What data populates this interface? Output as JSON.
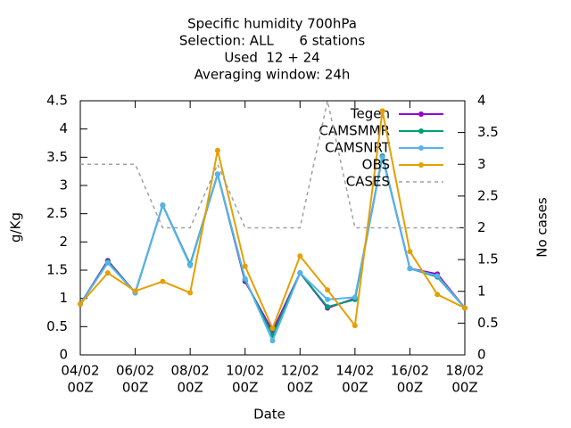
{
  "chart_data": {
    "type": "line",
    "title": [
      "Specific humidity 700hPa",
      "Selection: ALL      6 stations",
      "Used  12 + 24",
      "Averaging window: 24h"
    ],
    "xlabel": "Date",
    "ylabel": "g/Kg",
    "y2label": "No cases",
    "x": [
      4,
      5,
      6,
      7,
      8,
      9,
      10,
      11,
      12,
      13,
      14,
      15,
      16,
      17,
      18
    ],
    "xlim": [
      4,
      18
    ],
    "xticks": [
      {
        "value": 4,
        "label": [
          "04/02",
          "00Z"
        ]
      },
      {
        "value": 6,
        "label": [
          "06/02",
          "00Z"
        ]
      },
      {
        "value": 8,
        "label": [
          "08/02",
          "00Z"
        ]
      },
      {
        "value": 10,
        "label": [
          "10/02",
          "00Z"
        ]
      },
      {
        "value": 12,
        "label": [
          "12/02",
          "00Z"
        ]
      },
      {
        "value": 14,
        "label": [
          "14/02",
          "00Z"
        ]
      },
      {
        "value": 16,
        "label": [
          "16/02",
          "00Z"
        ]
      },
      {
        "value": 18,
        "label": [
          "18/02",
          "00Z"
        ]
      }
    ],
    "ylim": [
      0,
      4.5
    ],
    "yticks": [
      0,
      0.5,
      1,
      1.5,
      2,
      2.5,
      3,
      3.5,
      4,
      4.5
    ],
    "y2lim": [
      0,
      4
    ],
    "y2ticks": [
      0,
      0.5,
      1,
      1.5,
      2,
      2.5,
      3,
      3.5,
      4
    ],
    "legend": "top-right",
    "series": [
      {
        "name": "Tegen",
        "color": "#9400d3",
        "values": [
          0.9,
          1.67,
          1.1,
          2.65,
          1.6,
          3.2,
          1.3,
          0.42,
          1.45,
          0.83,
          1.0,
          3.52,
          1.53,
          1.43,
          0.83
        ]
      },
      {
        "name": "CAMSMMR",
        "color": "#009e73",
        "values": [
          0.9,
          1.65,
          1.1,
          2.65,
          1.6,
          3.2,
          1.33,
          0.35,
          1.45,
          0.85,
          0.98,
          3.52,
          1.53,
          1.38,
          0.83
        ]
      },
      {
        "name": "CAMSNRT",
        "color": "#56b4e9",
        "values": [
          0.9,
          1.63,
          1.1,
          2.65,
          1.58,
          3.2,
          1.35,
          0.25,
          1.45,
          0.98,
          1.02,
          3.5,
          1.53,
          1.4,
          0.83
        ]
      },
      {
        "name": "OBS",
        "color": "#e69f00",
        "values": [
          0.9,
          1.45,
          1.13,
          1.3,
          1.1,
          3.62,
          1.57,
          0.47,
          1.75,
          1.15,
          0.52,
          4.32,
          1.83,
          1.07,
          0.83
        ]
      },
      {
        "name": "CASES",
        "color": "#a0a0a0",
        "axis": "y2",
        "dashed": true,
        "values": [
          3,
          3,
          3,
          2,
          2,
          3,
          2,
          2,
          2,
          4,
          2,
          2,
          2,
          2,
          2
        ]
      }
    ]
  }
}
